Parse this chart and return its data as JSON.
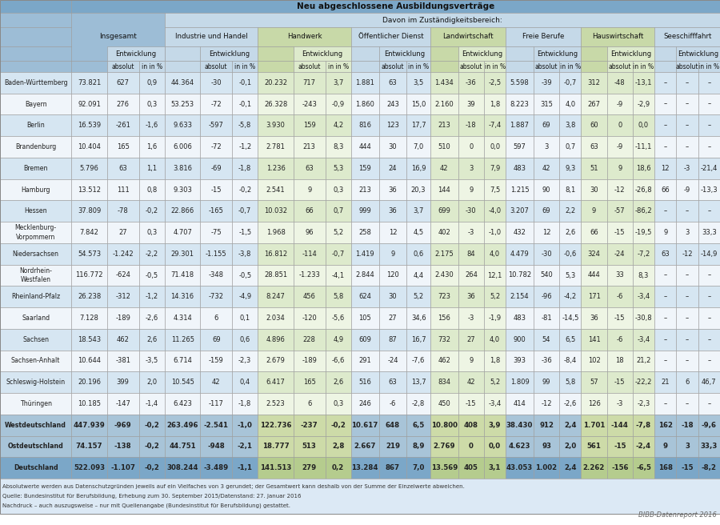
{
  "header1": "Neu abgeschlossene Ausbildungsverträge",
  "header2": "Davon im Zuständigkeitsbereich:",
  "rows": [
    [
      "Baden-Württemberg",
      "73.821",
      "627",
      "0,9",
      "44.364",
      "-30",
      "-0,1",
      "20.232",
      "717",
      "3,7",
      "1.881",
      "63",
      "3,5",
      "1.434",
      "-36",
      "-2,5",
      "5.598",
      "-39",
      "-0,7",
      "312",
      "-48",
      "-13,1",
      "–",
      "–",
      "–"
    ],
    [
      "Bayern",
      "92.091",
      "276",
      "0,3",
      "53.253",
      "-72",
      "-0,1",
      "26.328",
      "-243",
      "-0,9",
      "1.860",
      "243",
      "15,0",
      "2.160",
      "39",
      "1,8",
      "8.223",
      "315",
      "4,0",
      "267",
      "-9",
      "-2,9",
      "–",
      "–",
      "–"
    ],
    [
      "Berlin",
      "16.539",
      "-261",
      "-1,6",
      "9.633",
      "-597",
      "-5,8",
      "3.930",
      "159",
      "4,2",
      "816",
      "123",
      "17,7",
      "213",
      "-18",
      "-7,4",
      "1.887",
      "69",
      "3,8",
      "60",
      "0",
      "0,0",
      "–",
      "–",
      "–"
    ],
    [
      "Brandenburg",
      "10.404",
      "165",
      "1,6",
      "6.006",
      "-72",
      "-1,2",
      "2.781",
      "213",
      "8,3",
      "444",
      "30",
      "7,0",
      "510",
      "0",
      "0,0",
      "597",
      "3",
      "0,7",
      "63",
      "-9",
      "-11,1",
      "–",
      "–",
      "–"
    ],
    [
      "Bremen",
      "5.796",
      "63",
      "1,1",
      "3.816",
      "-69",
      "-1,8",
      "1.236",
      "63",
      "5,3",
      "159",
      "24",
      "16,9",
      "42",
      "3",
      "7,9",
      "483",
      "42",
      "9,3",
      "51",
      "9",
      "18,6",
      "12",
      "-3",
      "-21,4"
    ],
    [
      "Hamburg",
      "13.512",
      "111",
      "0,8",
      "9.303",
      "-15",
      "-0,2",
      "2.541",
      "9",
      "0,3",
      "213",
      "36",
      "20,3",
      "144",
      "9",
      "7,5",
      "1.215",
      "90",
      "8,1",
      "30",
      "-12",
      "-26,8",
      "66",
      "-9",
      "-13,3"
    ],
    [
      "Hessen",
      "37.809",
      "-78",
      "-0,2",
      "22.866",
      "-165",
      "-0,7",
      "10.032",
      "66",
      "0,7",
      "999",
      "36",
      "3,7",
      "699",
      "-30",
      "-4,0",
      "3.207",
      "69",
      "2,2",
      "9",
      "-57",
      "-86,2",
      "–",
      "–",
      "–"
    ],
    [
      "Mecklenburg-\nVorpommern",
      "7.842",
      "27",
      "0,3",
      "4.707",
      "-75",
      "-1,5",
      "1.968",
      "96",
      "5,2",
      "258",
      "12",
      "4,5",
      "402",
      "-3",
      "-1,0",
      "432",
      "12",
      "2,6",
      "66",
      "-15",
      "-19,5",
      "9",
      "3",
      "33,3"
    ],
    [
      "Niedersachsen",
      "54.573",
      "-1.242",
      "-2,2",
      "29.301",
      "-1.155",
      "-3,8",
      "16.812",
      "-114",
      "-0,7",
      "1.419",
      "9",
      "0,6",
      "2.175",
      "84",
      "4,0",
      "4.479",
      "-30",
      "-0,6",
      "324",
      "-24",
      "-7,2",
      "63",
      "-12",
      "-14,9"
    ],
    [
      "Nordrhein-\nWestfalen",
      "116.772",
      "-624",
      "-0,5",
      "71.418",
      "-348",
      "-0,5",
      "28.851",
      "-1.233",
      "-4,1",
      "2.844",
      "120",
      "4,4",
      "2.430",
      "264",
      "12,1",
      "10.782",
      "540",
      "5,3",
      "444",
      "33",
      "8,3",
      "–",
      "–",
      "–"
    ],
    [
      "Rheinland-Pfalz",
      "26.238",
      "-312",
      "-1,2",
      "14.316",
      "-732",
      "-4,9",
      "8.247",
      "456",
      "5,8",
      "624",
      "30",
      "5,2",
      "723",
      "36",
      "5,2",
      "2.154",
      "-96",
      "-4,2",
      "171",
      "-6",
      "-3,4",
      "–",
      "–",
      "–"
    ],
    [
      "Saarland",
      "7.128",
      "-189",
      "-2,6",
      "4.314",
      "6",
      "0,1",
      "2.034",
      "-120",
      "-5,6",
      "105",
      "27",
      "34,6",
      "156",
      "-3",
      "-1,9",
      "483",
      "-81",
      "-14,5",
      "36",
      "-15",
      "-30,8",
      "–",
      "–",
      "–"
    ],
    [
      "Sachsen",
      "18.543",
      "462",
      "2,6",
      "11.265",
      "69",
      "0,6",
      "4.896",
      "228",
      "4,9",
      "609",
      "87",
      "16,7",
      "732",
      "27",
      "4,0",
      "900",
      "54",
      "6,5",
      "141",
      "-6",
      "-3,4",
      "–",
      "–",
      "–"
    ],
    [
      "Sachsen-Anhalt",
      "10.644",
      "-381",
      "-3,5",
      "6.714",
      "-159",
      "-2,3",
      "2.679",
      "-189",
      "-6,6",
      "291",
      "-24",
      "-7,6",
      "462",
      "9",
      "1,8",
      "393",
      "-36",
      "-8,4",
      "102",
      "18",
      "21,2",
      "–",
      "–",
      "–"
    ],
    [
      "Schleswig-Holstein",
      "20.196",
      "399",
      "2,0",
      "10.545",
      "42",
      "0,4",
      "6.417",
      "165",
      "2,6",
      "516",
      "63",
      "13,7",
      "834",
      "42",
      "5,2",
      "1.809",
      "99",
      "5,8",
      "57",
      "-15",
      "-22,2",
      "21",
      "6",
      "46,7"
    ],
    [
      "Thüringen",
      "10.185",
      "-147",
      "-1,4",
      "6.423",
      "-117",
      "-1,8",
      "2.523",
      "6",
      "0,3",
      "246",
      "-6",
      "-2,8",
      "450",
      "-15",
      "-3,4",
      "414",
      "-12",
      "-2,6",
      "126",
      "-3",
      "-2,3",
      "–",
      "–",
      "–"
    ],
    [
      "Westdeutschland",
      "447.939",
      "-969",
      "-0,2",
      "263.496",
      "-2.541",
      "-1,0",
      "122.736",
      "-237",
      "-0,2",
      "10.617",
      "648",
      "6,5",
      "10.800",
      "408",
      "3,9",
      "38.430",
      "912",
      "2,4",
      "1.701",
      "-144",
      "-7,8",
      "162",
      "-18",
      "-9,6"
    ],
    [
      "Ostdeutschland",
      "74.157",
      "-138",
      "-0,2",
      "44.751",
      "-948",
      "-2,1",
      "18.777",
      "513",
      "2,8",
      "2.667",
      "219",
      "8,9",
      "2.769",
      "0",
      "0,0",
      "4.623",
      "93",
      "2,0",
      "561",
      "-15",
      "-2,4",
      "9",
      "3",
      "33,3"
    ],
    [
      "Deutschland",
      "522.093",
      "-1.107",
      "-0,2",
      "308.244",
      "-3.489",
      "-1,1",
      "141.513",
      "279",
      "0,2",
      "13.284",
      "867",
      "7,0",
      "13.569",
      "405",
      "3,1",
      "43.053",
      "1.002",
      "2,4",
      "2.262",
      "-156",
      "-6,5",
      "168",
      "-15",
      "-8,2"
    ]
  ],
  "footer_lines": [
    "Absolutwerte werden aus Datenschutzgründen jeweils auf ein Vielfaches von 3 gerundet; der Gesamtwert kann deshalb von der Summe der Einzelwerte abweichen.",
    "Quelle: Bundesinstitut für Berufsbildung, Erhebung zum 30. September 2015/Datenstand: 27. Januar 2016",
    "Nachdruck – auch auszugsweise – nur mit Quellenangabe (Bundesinstitut für Berufsbildung) gestattet."
  ],
  "watermark": "BIBB-Datenreport 2016",
  "col_group_labels": [
    "",
    "Insgesamt",
    "Industrie und Handel",
    "Handwerk",
    "Öffentlicher Dienst",
    "Landwirtschaft",
    "Freie Berufe",
    "Hauswirtschaft",
    "Seeschifffahrt"
  ],
  "colors": {
    "blue_dark": "#7ba7c8",
    "blue_mid": "#9dbdd6",
    "blue_light": "#c5d9e8",
    "green_dark": "#b5cc8e",
    "green_mid": "#c8d9a8",
    "green_light": "#ddeacc",
    "row_blue_even": "#d6e6f2",
    "row_blue_odd": "#eaf2f8",
    "row_green_even": "#ddeacc",
    "row_green_odd": "#eef5e4",
    "row_white": "#f8f8f8",
    "summary_blue_dark": "#7ba7c8",
    "summary_blue_light": "#a8c4d8",
    "summary_green_dark": "#b5cc8e",
    "summary_green_light": "#cddba8",
    "footer_bg": "#e8f0f8",
    "text": "#222222",
    "border": "#aaaaaa"
  }
}
